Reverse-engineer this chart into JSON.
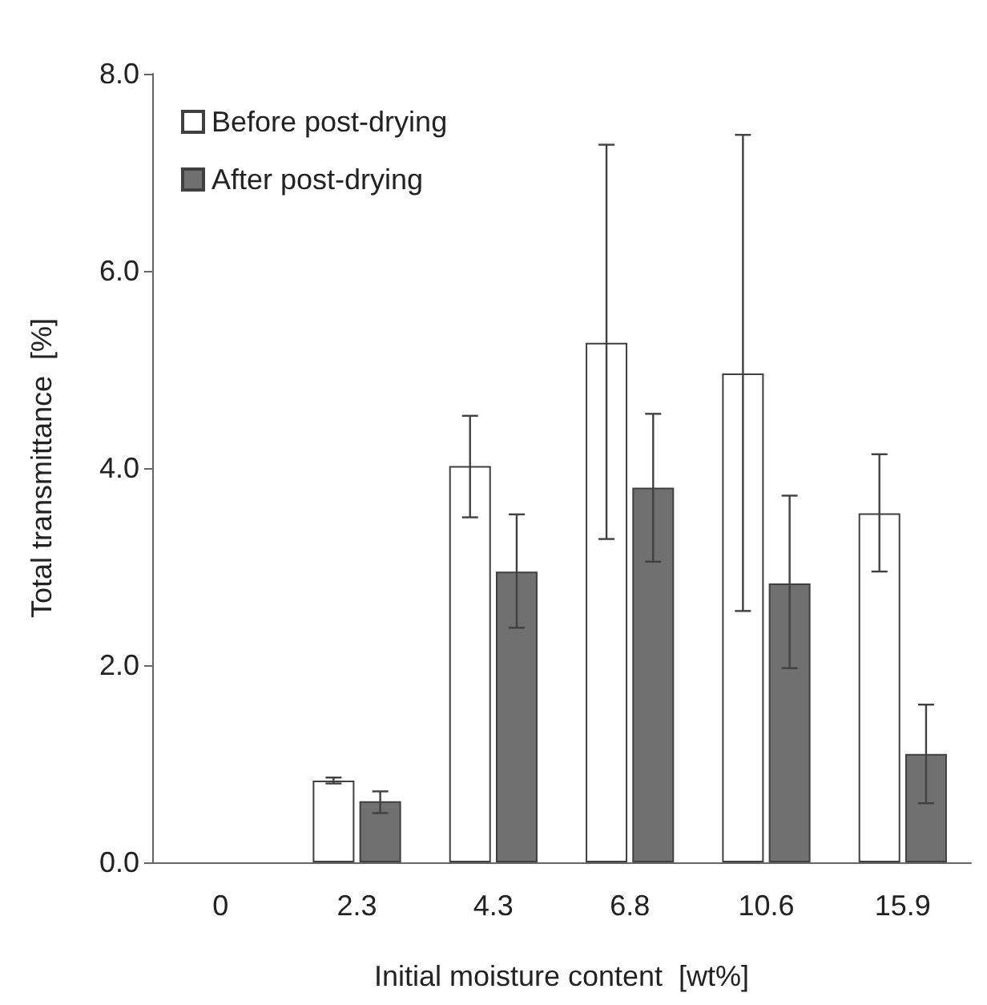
{
  "chart_data": {
    "type": "bar",
    "xlabel": "Initial moisture content  [wt%]",
    "ylabel": "Total transmittance  [%]",
    "categories": [
      "0",
      "2.3",
      "4.3",
      "6.8",
      "10.6",
      "15.9"
    ],
    "series": [
      {
        "name": "Before post-drying",
        "color": "#ffffff",
        "values": [
          null,
          0.83,
          4.02,
          5.27,
          4.96,
          3.54
        ],
        "errors": [
          null,
          [
            0.8,
            0.86
          ],
          [
            3.5,
            4.53
          ],
          [
            3.28,
            7.28
          ],
          [
            2.55,
            7.38
          ],
          [
            2.95,
            4.14
          ]
        ]
      },
      {
        "name": "After post-drying",
        "color": "#707070",
        "values": [
          null,
          0.62,
          2.95,
          3.8,
          2.83,
          1.1
        ],
        "errors": [
          null,
          [
            0.5,
            0.72
          ],
          [
            2.38,
            3.53
          ],
          [
            3.05,
            4.55
          ],
          [
            1.97,
            3.72
          ],
          [
            0.6,
            1.6
          ]
        ]
      }
    ],
    "ylim": [
      0,
      8
    ],
    "yticks": [
      {
        "value": 0,
        "label": "0.0"
      },
      {
        "value": 2,
        "label": "2.0"
      },
      {
        "value": 4,
        "label": "4.0"
      },
      {
        "value": 6,
        "label": "6.0"
      },
      {
        "value": 8,
        "label": "8.0"
      }
    ],
    "grid": false,
    "legend": "top left"
  }
}
